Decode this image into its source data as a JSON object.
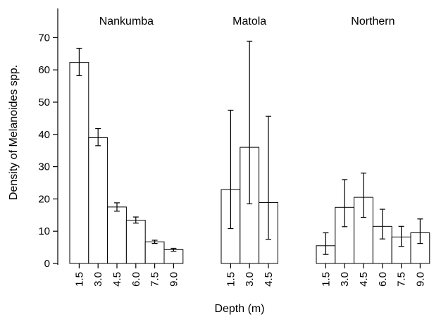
{
  "chart_data": {
    "type": "bar",
    "title": "",
    "xlabel": "Depth (m)",
    "ylabel": "Density of Melanoides  spp.",
    "ylim": [
      0,
      75
    ],
    "yticks": [
      0,
      10,
      20,
      30,
      40,
      50,
      60,
      70
    ],
    "grid": false,
    "error_bars": true,
    "groups": [
      {
        "name": "Nankumba",
        "categories": [
          "1.5",
          "3.0",
          "4.5",
          "6.0",
          "7.5",
          "9.0"
        ],
        "values": [
          62.3,
          39.0,
          17.5,
          13.4,
          6.7,
          4.3
        ],
        "err_low": [
          58.2,
          36.5,
          16.2,
          12.5,
          6.2,
          3.8
        ],
        "err_high": [
          66.7,
          41.8,
          18.8,
          14.4,
          7.2,
          4.7
        ]
      },
      {
        "name": "Matola",
        "categories": [
          "1.5",
          "3.0",
          "4.5"
        ],
        "values": [
          22.9,
          36.0,
          18.9
        ],
        "err_low": [
          10.8,
          18.5,
          7.5
        ],
        "err_high": [
          47.5,
          68.9,
          45.6
        ]
      },
      {
        "name": "Northern",
        "categories": [
          "1.5",
          "3.0",
          "4.5",
          "6.0",
          "7.5",
          "9.0"
        ],
        "values": [
          5.5,
          17.4,
          20.5,
          11.5,
          8.2,
          9.5
        ],
        "err_low": [
          2.8,
          11.4,
          14.3,
          7.6,
          5.3,
          6.2
        ],
        "err_high": [
          9.5,
          26.0,
          28.0,
          16.8,
          11.5,
          13.8
        ]
      }
    ]
  }
}
